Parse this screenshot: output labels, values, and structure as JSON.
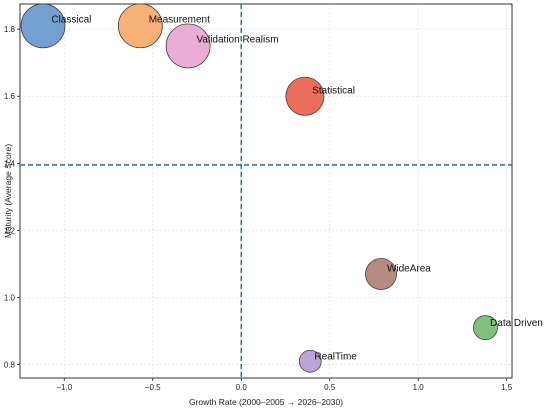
{
  "chart_data": {
    "type": "scatter",
    "title": "",
    "xlabel": "Growth Rate (2000–2005 → 2026–2030)",
    "ylabel": "Maturity (Average Score)",
    "xlim": [
      -1.25,
      1.53
    ],
    "ylim": [
      0.76,
      1.875
    ],
    "xticks": [
      -1.0,
      -0.5,
      0.0,
      0.5,
      1.0,
      1.5
    ],
    "xtick_labels": [
      "−1.0",
      "−0.5",
      "0.0",
      "0.5",
      "1.0",
      "1.5"
    ],
    "yticks": [
      0.8,
      1.0,
      1.2,
      1.4,
      1.6,
      1.8
    ],
    "ytick_labels": [
      "0.8",
      "1.0",
      "1.2",
      "1.4",
      "1.6",
      "1.8"
    ],
    "grid": true,
    "reference_lines": {
      "vertical_x": 0.0,
      "horizontal_y": 1.395,
      "style": "dashed",
      "color": "#1f6fa8"
    },
    "points": [
      {
        "label": "Classical",
        "x": -1.12,
        "y": 1.81,
        "size": 1.0,
        "color": "#5b8ec9"
      },
      {
        "label": "Measurement",
        "x": -0.57,
        "y": 1.81,
        "size": 1.0,
        "color": "#f7a35c"
      },
      {
        "label": "Validation Realism",
        "x": -0.3,
        "y": 1.75,
        "size": 1.0,
        "color": "#e79fd1"
      },
      {
        "label": "Statistical",
        "x": 0.36,
        "y": 1.6,
        "size": 0.75,
        "color": "#e6553d"
      },
      {
        "label": "WideArea",
        "x": 0.79,
        "y": 1.07,
        "size": 0.5,
        "color": "#a8756b"
      },
      {
        "label": "Data Driven",
        "x": 1.38,
        "y": 0.91,
        "size": 0.3,
        "color": "#6ab66a"
      },
      {
        "label": "RealTime",
        "x": 0.39,
        "y": 0.81,
        "size": 0.25,
        "color": "#b194d1"
      }
    ]
  }
}
